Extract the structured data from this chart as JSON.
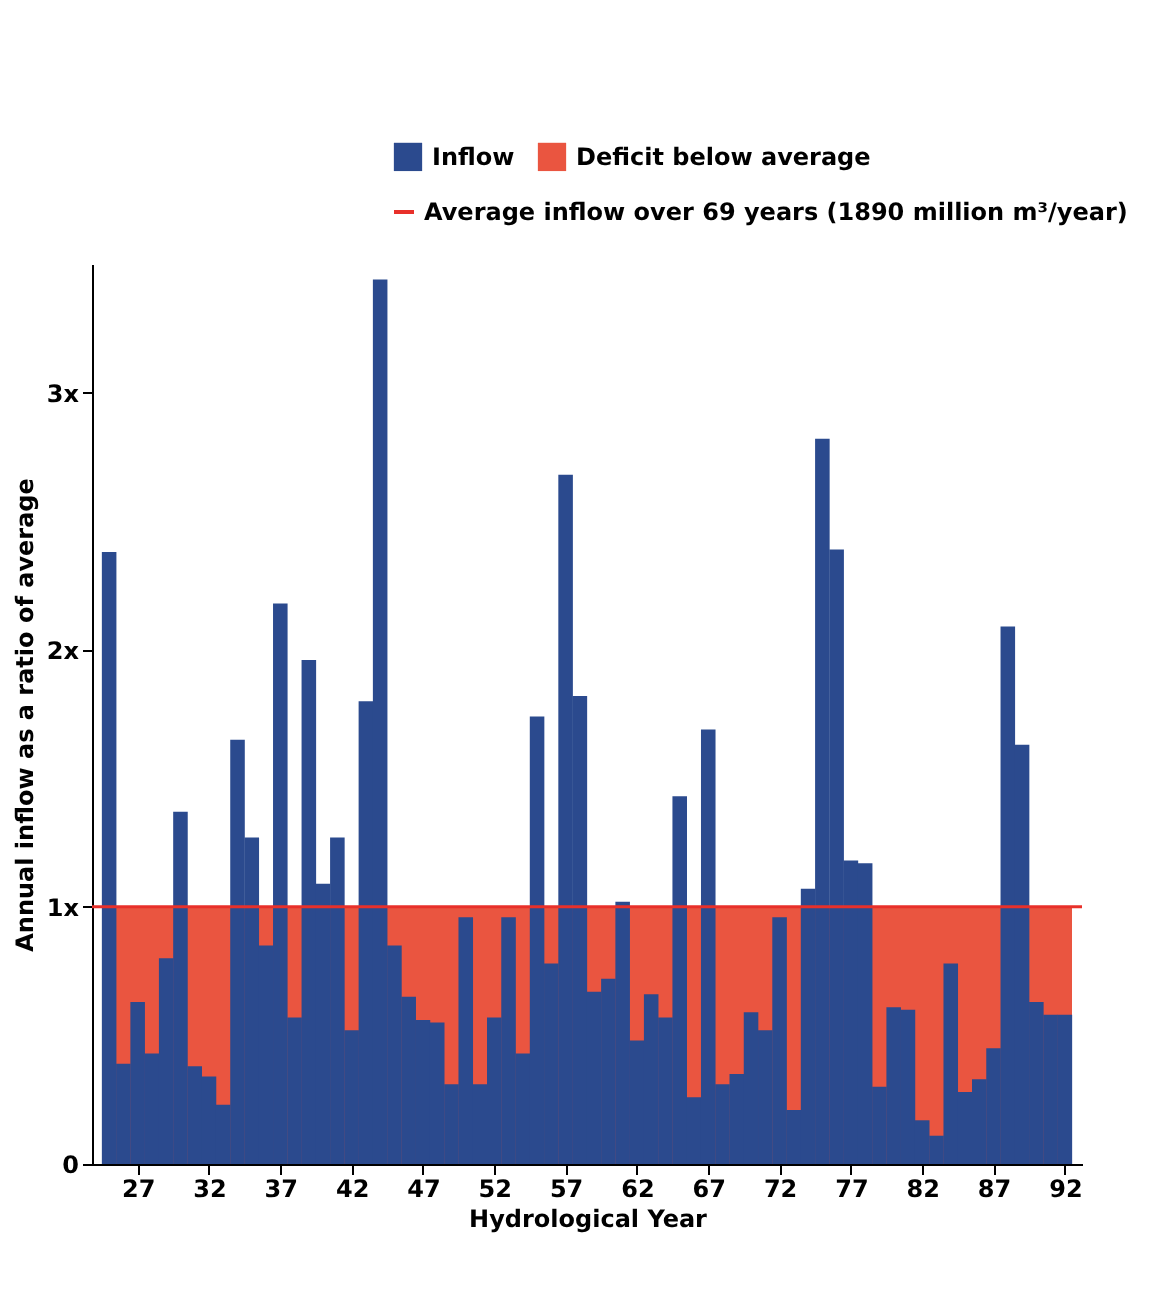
{
  "chart_data": {
    "type": "bar",
    "xlabel": "Hydrological Year",
    "ylabel": "Annual inflow as a ratio of average",
    "x": [
      1925,
      1926,
      1927,
      1928,
      1929,
      1930,
      1931,
      1932,
      1933,
      1934,
      1935,
      1936,
      1937,
      1938,
      1939,
      1940,
      1941,
      1942,
      1943,
      1944,
      1945,
      1946,
      1947,
      1948,
      1949,
      1950,
      1951,
      1952,
      1953,
      1954,
      1955,
      1956,
      1957,
      1958,
      1959,
      1960,
      1961,
      1962,
      1963,
      1964,
      1965,
      1966,
      1967,
      1968,
      1969,
      1970,
      1971,
      1972,
      1973,
      1974,
      1975,
      1976,
      1977,
      1978,
      1979,
      1980,
      1981,
      1982,
      1983,
      1984,
      1985,
      1986,
      1987,
      1988,
      1989,
      1990,
      1991,
      1992
    ],
    "series": [
      {
        "name": "Inflow",
        "color": "#2b4a8e",
        "values": [
          2.38,
          0.39,
          0.63,
          0.43,
          0.8,
          1.37,
          0.38,
          0.34,
          0.23,
          1.65,
          1.27,
          0.85,
          2.18,
          0.57,
          1.96,
          1.09,
          1.27,
          0.52,
          1.8,
          3.44,
          0.85,
          0.65,
          0.56,
          0.55,
          0.31,
          0.96,
          0.31,
          0.57,
          0.96,
          0.43,
          1.74,
          0.78,
          2.68,
          1.82,
          0.67,
          0.72,
          1.02,
          0.48,
          0.66,
          0.57,
          1.43,
          0.26,
          1.69,
          0.31,
          0.35,
          0.59,
          0.52,
          0.96,
          0.21,
          1.07,
          2.82,
          2.39,
          1.18,
          1.17,
          0.3,
          0.61,
          0.6,
          0.17,
          0.11,
          0.78,
          0.28,
          0.33,
          0.45,
          2.09,
          1.63,
          0.63,
          0.58,
          0.58
        ]
      }
    ],
    "bands": [
      {
        "axis": "y",
        "from": 0,
        "to": 1,
        "label": "Deficit below average",
        "color": "#ea5540"
      }
    ],
    "ref_lines": [
      {
        "axis": "y",
        "value": 1,
        "label": "Average inflow over 69 years (1890 million m³/year)",
        "color": "#e8302a"
      }
    ],
    "xlim": [
      1924.5,
      1992.5
    ],
    "xticks": [
      {
        "value": 1927,
        "label": "27"
      },
      {
        "value": 1932,
        "label": "32"
      },
      {
        "value": 1937,
        "label": "37"
      },
      {
        "value": 1942,
        "label": "42"
      },
      {
        "value": 1947,
        "label": "47"
      },
      {
        "value": 1952,
        "label": "52"
      },
      {
        "value": 1957,
        "label": "57"
      },
      {
        "value": 1962,
        "label": "62"
      },
      {
        "value": 1967,
        "label": "67"
      },
      {
        "value": 1972,
        "label": "72"
      },
      {
        "value": 1977,
        "label": "77"
      },
      {
        "value": 1982,
        "label": "82"
      },
      {
        "value": 1987,
        "label": "87"
      },
      {
        "value": 1992,
        "label": "92"
      }
    ],
    "ylim": [
      0,
      3.5
    ],
    "yticks": [
      0,
      {
        "value": 1,
        "label": "1x"
      },
      {
        "value": 2,
        "label": "2x"
      },
      {
        "value": 3,
        "label": "3x"
      }
    ],
    "grid": false,
    "legend": "top"
  }
}
